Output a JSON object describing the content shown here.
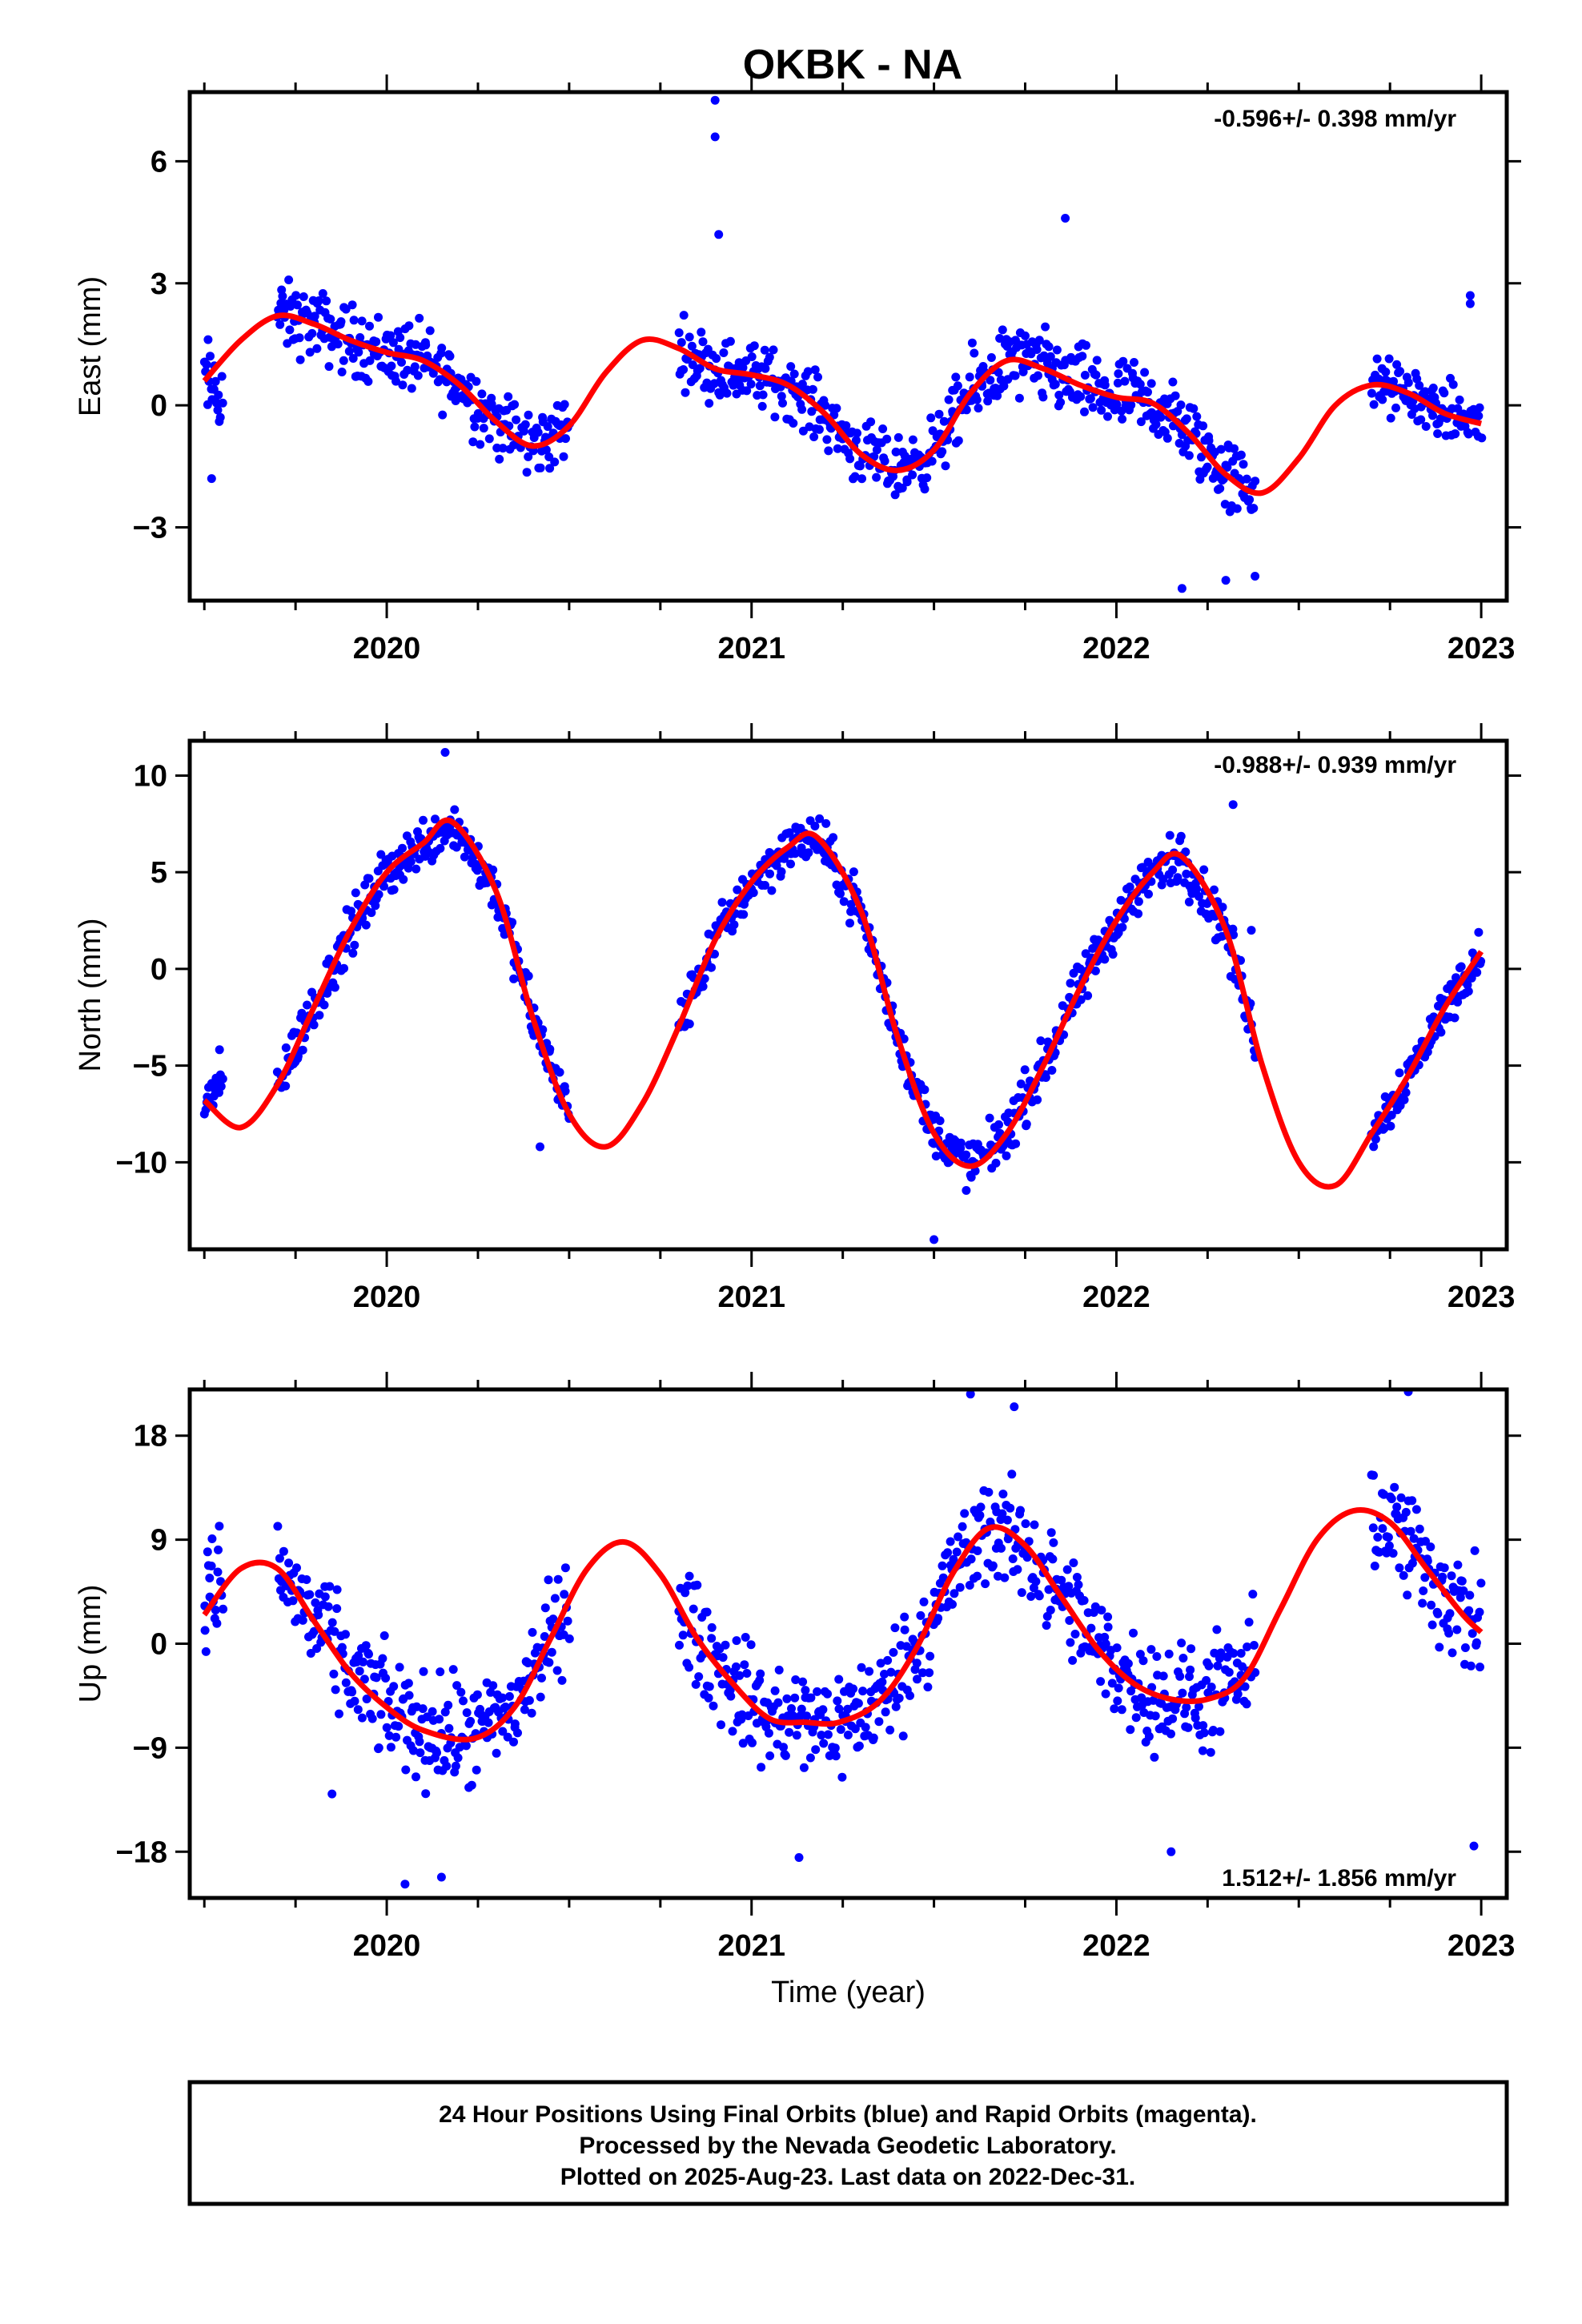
{
  "title": "OKBK - NA",
  "caption_lines": [
    "24 Hour Positions Using Final Orbits (blue) and Rapid Orbits (magenta).",
    "Processed by the Nevada Geodetic Laboratory.",
    "Plotted on 2025-Aug-23. Last data on 2022-Dec-31."
  ],
  "colors": {
    "final_orbits": "#0000ff",
    "fit": "#ff0000",
    "frame": "#000000"
  },
  "chart_data": [
    {
      "type": "scatter",
      "ylabel": "East (mm)",
      "rate": "-0.596+/- 0.398 mm/yr",
      "xlim": [
        2019.46,
        2023.07
      ],
      "ylim": [
        -4.8,
        7.7
      ],
      "xticks": [
        2020,
        2021,
        2022,
        2023
      ],
      "yticks": [
        6,
        3,
        0,
        -3
      ],
      "ytick_labels": [
        "6",
        "3",
        "0",
        "−3"
      ],
      "gaps": [
        [
          2020.55,
          2020.8
        ],
        [
          2022.4,
          2022.7
        ]
      ],
      "fit": {
        "x": [
          2019.5,
          2019.6,
          2019.7,
          2019.8,
          2019.9,
          2020.0,
          2020.1,
          2020.2,
          2020.3,
          2020.4,
          2020.5,
          2020.6,
          2020.7,
          2020.8,
          2020.9,
          2021.0,
          2021.1,
          2021.2,
          2021.3,
          2021.4,
          2021.5,
          2021.6,
          2021.7,
          2021.8,
          2021.9,
          2022.0,
          2022.1,
          2022.2,
          2022.3,
          2022.4,
          2022.5,
          2022.6,
          2022.7,
          2022.8,
          2022.9,
          2023.0
        ],
        "y": [
          0.6,
          1.6,
          2.2,
          2.0,
          1.6,
          1.3,
          1.1,
          0.5,
          -0.4,
          -1.0,
          -0.5,
          0.8,
          1.6,
          1.4,
          0.9,
          0.75,
          0.5,
          -0.2,
          -1.2,
          -1.6,
          -1.1,
          0.3,
          1.1,
          0.9,
          0.5,
          0.2,
          0.05,
          -0.7,
          -1.7,
          -2.15,
          -1.3,
          0.0,
          0.5,
          0.3,
          -0.2,
          -0.45
        ]
      },
      "points": {
        "segments": [
          {
            "x": [
              2019.5,
              2019.55
            ],
            "base": [
              0.6,
              0.3
            ],
            "spread": 1.4
          },
          {
            "x": [
              2019.7,
              2020.5
            ],
            "base": "fit",
            "spread": 1.1
          },
          {
            "x": [
              2020.8,
              2021.55
            ],
            "base": "fit",
            "spread": 1.0
          },
          {
            "x": [
              2021.55,
              2022.38
            ],
            "base": "fit",
            "spread": 1.2
          },
          {
            "x": [
              2022.7,
              2023.0
            ],
            "base": "fit",
            "spread": 0.9
          }
        ],
        "extra": [
          [
            2020.9,
            7.5
          ],
          [
            2020.9,
            6.6
          ],
          [
            2020.91,
            4.2
          ],
          [
            2021.86,
            4.6
          ],
          [
            2022.18,
            -4.5
          ],
          [
            2022.3,
            -4.3
          ],
          [
            2022.38,
            -4.2
          ],
          [
            2022.97,
            2.7
          ],
          [
            2022.97,
            2.5
          ],
          [
            2019.52,
            -1.8
          ]
        ]
      }
    },
    {
      "type": "scatter",
      "ylabel": "North (mm)",
      "rate": "-0.988+/- 0.939 mm/yr",
      "xlim": [
        2019.46,
        2023.07
      ],
      "ylim": [
        -14.5,
        11.8
      ],
      "xticks": [
        2020,
        2021,
        2022,
        2023
      ],
      "yticks": [
        10,
        5,
        0,
        -5,
        -10
      ],
      "ytick_labels": [
        "10",
        "5",
        "0",
        "−5",
        "−10"
      ],
      "gaps": [
        [
          2020.55,
          2020.8
        ],
        [
          2022.4,
          2022.7
        ]
      ],
      "fit": {
        "x": [
          2019.5,
          2019.6,
          2019.7,
          2019.8,
          2019.9,
          2020.0,
          2020.1,
          2020.18,
          2020.3,
          2020.4,
          2020.5,
          2020.6,
          2020.7,
          2020.8,
          2020.9,
          2021.0,
          2021.1,
          2021.18,
          2021.3,
          2021.4,
          2021.5,
          2021.6,
          2021.7,
          2021.8,
          2021.9,
          2022.0,
          2022.1,
          2022.18,
          2022.3,
          2022.4,
          2022.5,
          2022.6,
          2022.7,
          2022.8,
          2022.9,
          2023.0
        ],
        "y": [
          -6.8,
          -8.2,
          -6.0,
          -2.0,
          2.0,
          5.0,
          6.5,
          7.6,
          4.0,
          -2.5,
          -7.5,
          -9.2,
          -7.0,
          -3.0,
          1.5,
          4.5,
          6.3,
          6.8,
          3.0,
          -3.5,
          -8.5,
          -10.2,
          -8.5,
          -5.0,
          -1.0,
          2.5,
          5.0,
          5.8,
          2.0,
          -5.0,
          -10.0,
          -11.2,
          -8.5,
          -5.5,
          -2.0,
          0.9
        ]
      },
      "points": {
        "segments": [
          {
            "x": [
              2019.5,
              2019.55
            ],
            "base": [
              -6.8,
              -6.0
            ],
            "spread": 2.0
          },
          {
            "x": [
              2019.7,
              2020.5
            ],
            "base": "fit",
            "spread": 1.7
          },
          {
            "x": [
              2020.8,
              2021.55
            ],
            "base": "fit",
            "spread": 1.6
          },
          {
            "x": [
              2021.55,
              2022.38
            ],
            "base": "fit",
            "spread": 1.7
          },
          {
            "x": [
              2022.7,
              2023.0
            ],
            "base": "fit",
            "spread": 1.5
          }
        ],
        "extra": [
          [
            2020.16,
            11.2
          ],
          [
            2021.5,
            -14.0
          ],
          [
            2022.32,
            8.5
          ],
          [
            2020.42,
            -9.2
          ],
          [
            2022.37,
            2.0
          ]
        ]
      }
    },
    {
      "type": "scatter",
      "ylabel": "Up (mm)",
      "xlabel": "Time (year)",
      "rate": "1.512+/- 1.856 mm/yr",
      "xlim": [
        2019.46,
        2023.07
      ],
      "ylim": [
        -22,
        22
      ],
      "xticks": [
        2020,
        2021,
        2022,
        2023
      ],
      "yticks": [
        18,
        9,
        0,
        -9,
        -18
      ],
      "ytick_labels": [
        "18",
        "9",
        "0",
        "−9",
        "−18"
      ],
      "gaps": [
        [
          2020.55,
          2020.8
        ],
        [
          2022.4,
          2022.7
        ]
      ],
      "fit": {
        "x": [
          2019.5,
          2019.6,
          2019.7,
          2019.8,
          2019.9,
          2020.0,
          2020.1,
          2020.24,
          2020.35,
          2020.45,
          2020.55,
          2020.65,
          2020.75,
          2020.85,
          2020.95,
          2021.05,
          2021.15,
          2021.24,
          2021.35,
          2021.45,
          2021.55,
          2021.65,
          2021.75,
          2021.85,
          2021.95,
          2022.05,
          2022.15,
          2022.25,
          2022.35,
          2022.45,
          2022.55,
          2022.65,
          2022.75,
          2022.85,
          2022.95,
          2023.0
        ],
        "y": [
          2.5,
          6.5,
          6.5,
          2.0,
          -2.5,
          -5.5,
          -7.5,
          -8.2,
          -5.5,
          0.5,
          6.5,
          8.8,
          6.0,
          0.5,
          -3.5,
          -6.5,
          -6.8,
          -6.8,
          -5.0,
          -0.5,
          6.0,
          10.0,
          8.5,
          4.0,
          -0.5,
          -3.5,
          -4.8,
          -4.8,
          -3.0,
          3.0,
          9.0,
          11.5,
          10.5,
          6.5,
          2.5,
          1.0
        ]
      },
      "points": {
        "segments": [
          {
            "x": [
              2019.5,
              2019.55
            ],
            "base": [
              4.0,
              6.0
            ],
            "spread": 6.0
          },
          {
            "x": [
              2019.7,
              2020.5
            ],
            "base": "fit",
            "spread": 6.0
          },
          {
            "x": [
              2020.8,
              2021.55
            ],
            "base": "fit",
            "spread": 6.0
          },
          {
            "x": [
              2021.55,
              2022.38
            ],
            "base": "fit",
            "spread": 6.0
          },
          {
            "x": [
              2022.7,
              2023.0
            ],
            "base": "fit",
            "spread": 6.5
          }
        ],
        "extra": [
          [
            2020.05,
            -20.8
          ],
          [
            2020.15,
            -20.2
          ],
          [
            2021.13,
            -18.5
          ],
          [
            2022.15,
            -18.0
          ],
          [
            2022.8,
            21.8
          ],
          [
            2021.6,
            21.6
          ],
          [
            2022.98,
            -17.5
          ],
          [
            2021.72,
            20.5
          ],
          [
            2019.85,
            -13.0
          ]
        ]
      }
    }
  ]
}
